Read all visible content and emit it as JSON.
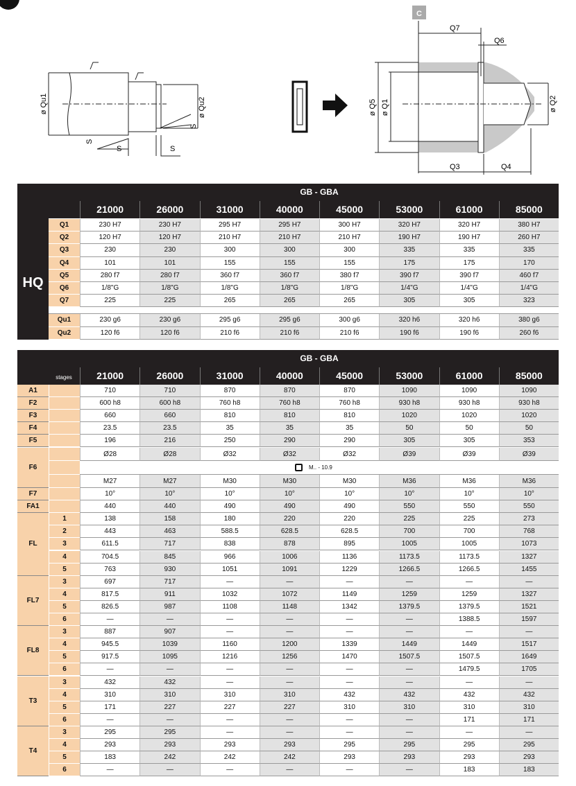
{
  "diagram": {
    "left": [
      "ø Qu1",
      "ø Qu2",
      "S",
      "S",
      "S",
      "S"
    ],
    "right": {
      "section": "C",
      "q7": "Q7",
      "q6": "Q6",
      "q5": "ø Q5",
      "q1": "ø Q1",
      "q2": "ø Q2",
      "q3": "Q3",
      "q4": "Q4"
    }
  },
  "table1": {
    "title": "GB - GBA",
    "group": "HQ",
    "columns": [
      "21000",
      "26000",
      "31000",
      "40000",
      "45000",
      "53000",
      "61000",
      "85000"
    ],
    "rows": [
      {
        "label": "Q1",
        "cells": [
          "230 H7",
          "230 H7",
          "295 H7",
          "295 H7",
          "300 H7",
          "320 H7",
          "320 H7",
          "380 H7"
        ]
      },
      {
        "label": "Q2",
        "cells": [
          "120 H7",
          "120 H7",
          "210 H7",
          "210 H7",
          "210 H7",
          "190 H7",
          "190 H7",
          "260 H7"
        ]
      },
      {
        "label": "Q3",
        "cells": [
          "230",
          "230",
          "300",
          "300",
          "300",
          "335",
          "335",
          "335"
        ]
      },
      {
        "label": "Q4",
        "cells": [
          "101",
          "101",
          "155",
          "155",
          "155",
          "175",
          "175",
          "170"
        ]
      },
      {
        "label": "Q5",
        "cells": [
          "280 f7",
          "280 f7",
          "360 f7",
          "360 f7",
          "380 f7",
          "390 f7",
          "390 f7",
          "460 f7"
        ]
      },
      {
        "label": "Q6",
        "cells": [
          "1/8\"G",
          "1/8\"G",
          "1/8\"G",
          "1/8\"G",
          "1/8\"G",
          "1/4\"G",
          "1/4\"G",
          "1/4\"G"
        ]
      },
      {
        "label": "Q7",
        "cells": [
          "225",
          "225",
          "265",
          "265",
          "265",
          "305",
          "305",
          "323"
        ]
      }
    ],
    "extra_rows": [
      {
        "label": "Qu1",
        "cells": [
          "230 g6",
          "230 g6",
          "295 g6",
          "295 g6",
          "300 g6",
          "320 h6",
          "320 h6",
          "380 g6"
        ]
      },
      {
        "label": "Qu2",
        "cells": [
          "120 f6",
          "120 f6",
          "210 f6",
          "210 f6",
          "210 f6",
          "190 f6",
          "190 f6",
          "260 f6"
        ]
      }
    ]
  },
  "table2": {
    "title": "GB - GBA",
    "stages_label": "stages",
    "columns": [
      "21000",
      "26000",
      "31000",
      "40000",
      "45000",
      "53000",
      "61000",
      "85000"
    ],
    "groups": [
      {
        "label": "A1",
        "rows": [
          {
            "cells": [
              "710",
              "710",
              "870",
              "870",
              "870",
              "1090",
              "1090",
              "1090"
            ]
          }
        ]
      },
      {
        "label": "F2",
        "rows": [
          {
            "cells": [
              "600 h8",
              "600 h8",
              "760 h8",
              "760 h8",
              "760 h8",
              "930 h8",
              "930 h8",
              "930 h8"
            ]
          }
        ]
      },
      {
        "label": "F3",
        "rows": [
          {
            "cells": [
              "660",
              "660",
              "810",
              "810",
              "810",
              "1020",
              "1020",
              "1020"
            ]
          }
        ]
      },
      {
        "label": "F4",
        "rows": [
          {
            "cells": [
              "23.5",
              "23.5",
              "35",
              "35",
              "35",
              "50",
              "50",
              "50"
            ]
          }
        ]
      },
      {
        "label": "F5",
        "rows": [
          {
            "cells": [
              "196",
              "216",
              "250",
              "290",
              "290",
              "305",
              "305",
              "353"
            ]
          }
        ]
      },
      {
        "label": "F6",
        "rows": [
          {
            "cells": [
              "Ø28",
              "Ø28",
              "Ø32",
              "Ø32",
              "Ø32",
              "Ø39",
              "Ø39",
              "Ø39"
            ]
          },
          {
            "note": "M.. - 10.9"
          },
          {
            "cells": [
              "M27",
              "M27",
              "M30",
              "M30",
              "M30",
              "M36",
              "M36",
              "M36"
            ]
          }
        ]
      },
      {
        "label": "F7",
        "rows": [
          {
            "cells": [
              "10°",
              "10°",
              "10°",
              "10°",
              "10°",
              "10°",
              "10°",
              "10°"
            ]
          }
        ]
      },
      {
        "label": "FA1",
        "rows": [
          {
            "cells": [
              "440",
              "440",
              "490",
              "490",
              "490",
              "550",
              "550",
              "550"
            ]
          }
        ]
      },
      {
        "label": "FL",
        "rows": [
          {
            "stage": "1",
            "cells": [
              "138",
              "158",
              "180",
              "220",
              "220",
              "225",
              "225",
              "273"
            ]
          },
          {
            "stage": "2",
            "cells": [
              "443",
              "463",
              "588.5",
              "628.5",
              "628.5",
              "700",
              "700",
              "768"
            ]
          },
          {
            "stage": "3",
            "cells": [
              "611.5",
              "717",
              "838",
              "878",
              "895",
              "1005",
              "1005",
              "1073"
            ]
          },
          {
            "stage": "4",
            "cells": [
              "704.5",
              "845",
              "966",
              "1006",
              "1136",
              "1173.5",
              "1173.5",
              "1327"
            ]
          },
          {
            "stage": "5",
            "cells": [
              "763",
              "930",
              "1051",
              "1091",
              "1229",
              "1266.5",
              "1266.5",
              "1455"
            ]
          }
        ]
      },
      {
        "label": "FL7",
        "rows": [
          {
            "stage": "3",
            "cells": [
              "697",
              "717",
              "—",
              "—",
              "—",
              "—",
              "—",
              "—"
            ]
          },
          {
            "stage": "4",
            "cells": [
              "817.5",
              "911",
              "1032",
              "1072",
              "1149",
              "1259",
              "1259",
              "1327"
            ]
          },
          {
            "stage": "5",
            "cells": [
              "826.5",
              "987",
              "1108",
              "1148",
              "1342",
              "1379.5",
              "1379.5",
              "1521"
            ]
          },
          {
            "stage": "6",
            "cells": [
              "—",
              "—",
              "—",
              "—",
              "—",
              "—",
              "1388.5",
              "1597"
            ]
          }
        ]
      },
      {
        "label": "FL8",
        "rows": [
          {
            "stage": "3",
            "cells": [
              "887",
              "907",
              "—",
              "—",
              "—",
              "—",
              "—",
              "—"
            ]
          },
          {
            "stage": "4",
            "cells": [
              "945.5",
              "1039",
              "1160",
              "1200",
              "1339",
              "1449",
              "1449",
              "1517"
            ]
          },
          {
            "stage": "5",
            "cells": [
              "917.5",
              "1095",
              "1216",
              "1256",
              "1470",
              "1507.5",
              "1507.5",
              "1649"
            ]
          },
          {
            "stage": "6",
            "cells": [
              "—",
              "—",
              "—",
              "—",
              "—",
              "—",
              "1479.5",
              "1705"
            ]
          }
        ]
      },
      {
        "label": "T3",
        "rows": [
          {
            "stage": "3",
            "cells": [
              "432",
              "432",
              "—",
              "—",
              "—",
              "—",
              "—",
              "—"
            ]
          },
          {
            "stage": "4",
            "cells": [
              "310",
              "310",
              "310",
              "310",
              "432",
              "432",
              "432",
              "432"
            ]
          },
          {
            "stage": "5",
            "cells": [
              "171",
              "227",
              "227",
              "227",
              "310",
              "310",
              "310",
              "310"
            ]
          },
          {
            "stage": "6",
            "cells": [
              "—",
              "—",
              "—",
              "—",
              "—",
              "—",
              "171",
              "171"
            ]
          }
        ]
      },
      {
        "label": "T4",
        "rows": [
          {
            "stage": "3",
            "cells": [
              "295",
              "295",
              "—",
              "—",
              "—",
              "—",
              "—",
              "—"
            ]
          },
          {
            "stage": "4",
            "cells": [
              "293",
              "293",
              "293",
              "293",
              "295",
              "295",
              "295",
              "295"
            ]
          },
          {
            "stage": "5",
            "cells": [
              "183",
              "242",
              "242",
              "242",
              "293",
              "293",
              "293",
              "293"
            ]
          },
          {
            "stage": "6",
            "cells": [
              "—",
              "—",
              "—",
              "—",
              "—",
              "—",
              "183",
              "183"
            ]
          }
        ]
      }
    ]
  }
}
